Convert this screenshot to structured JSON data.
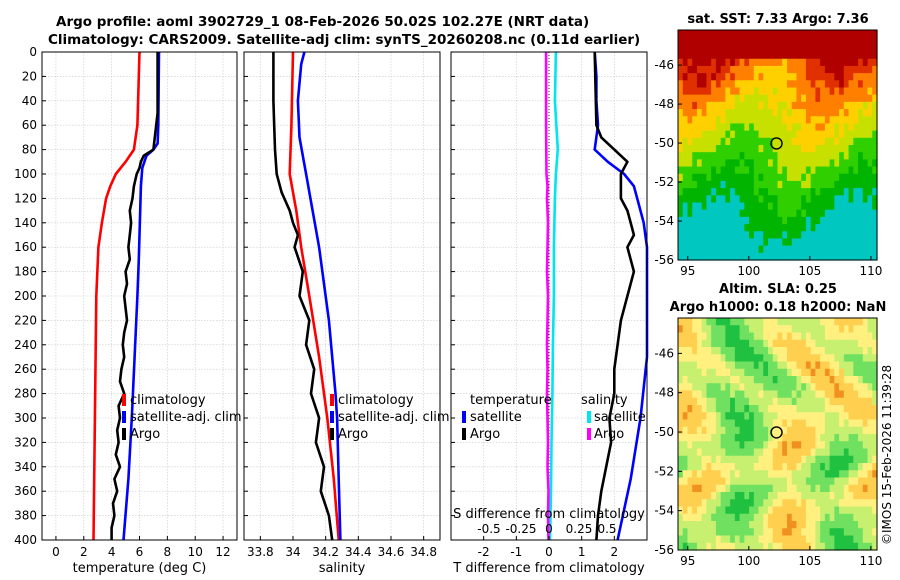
{
  "title_line1": "Argo profile: aoml 3902729_1 08-Feb-2026 50.02S 102.27E (NRT data)",
  "title_line2": "Climatology: CARS2009. Satellite-adj clim: synTS_20260208.nc (0.11d earlier)",
  "credit": "©IMOS 15-Feb-2026 11:39:28",
  "colors": {
    "climatology": "#ff0000",
    "satellite": "#0000ff",
    "argo": "#000000",
    "sal_satellite": "#00e5ee",
    "sal_argo": "#ff00ff"
  },
  "chart_data": [
    {
      "id": "temperature",
      "type": "line",
      "xlabel": "temperature (deg C)",
      "xlim": [
        -1,
        13
      ],
      "xticks": [
        "0",
        "2",
        "4",
        "6",
        "8",
        "10",
        "12"
      ],
      "xtick_values": [
        0,
        2,
        4,
        6,
        8,
        10,
        12
      ],
      "ylim": [
        400,
        0
      ],
      "yticks": [
        "0",
        "20",
        "40",
        "60",
        "80",
        "100",
        "120",
        "140",
        "160",
        "180",
        "200",
        "220",
        "240",
        "260",
        "280",
        "300",
        "320",
        "340",
        "360",
        "380",
        "400"
      ],
      "ytick_values": [
        0,
        20,
        40,
        60,
        80,
        100,
        120,
        140,
        160,
        180,
        200,
        220,
        240,
        260,
        280,
        300,
        320,
        340,
        360,
        380,
        400
      ],
      "legend": [
        "climatology",
        "satellite-adj. clim",
        "Argo"
      ],
      "series": [
        {
          "name": "climatology",
          "color": "#ff0000",
          "depth": [
            0,
            40,
            60,
            80,
            90,
            100,
            110,
            120,
            140,
            160,
            200,
            250,
            300,
            350,
            400
          ],
          "values": [
            6.0,
            5.9,
            5.85,
            5.6,
            5.0,
            4.3,
            3.9,
            3.6,
            3.3,
            3.05,
            2.9,
            2.85,
            2.8,
            2.75,
            2.7
          ]
        },
        {
          "name": "satellite-adj. clim",
          "color": "#0000ff",
          "depth": [
            0,
            60,
            75,
            80,
            85,
            95,
            110,
            130,
            150,
            170,
            200,
            250,
            300,
            350,
            400
          ],
          "values": [
            7.4,
            7.35,
            7.3,
            7.0,
            6.5,
            6.2,
            6.1,
            6.05,
            6.0,
            5.95,
            5.85,
            5.65,
            5.45,
            5.2,
            4.85
          ]
        },
        {
          "name": "Argo",
          "color": "#000000",
          "depth": [
            0,
            50,
            60,
            70,
            80,
            85,
            90,
            95,
            100,
            110,
            120,
            130,
            140,
            150,
            160,
            170,
            180,
            190,
            200,
            210,
            220,
            230,
            240,
            250,
            260,
            270,
            280,
            290,
            300,
            310,
            320,
            330,
            340,
            350,
            360,
            370,
            380,
            390,
            400
          ],
          "values": [
            7.3,
            7.3,
            7.2,
            7.1,
            7.0,
            6.3,
            6.1,
            6.0,
            5.8,
            5.6,
            5.5,
            5.3,
            5.4,
            5.3,
            5.2,
            5.3,
            5.0,
            5.1,
            4.9,
            5.0,
            5.1,
            4.9,
            4.8,
            4.9,
            4.7,
            4.6,
            4.9,
            4.5,
            4.6,
            4.4,
            4.5,
            4.3,
            4.6,
            4.2,
            4.4,
            4.1,
            4.2,
            4.0,
            4.0
          ]
        }
      ]
    },
    {
      "id": "salinity",
      "type": "line",
      "xlabel": "salinity",
      "xlim": [
        33.7,
        34.9
      ],
      "xticks": [
        "33.8",
        "34",
        "34.2",
        "34.4",
        "34.6",
        "34.8"
      ],
      "xtick_values": [
        33.8,
        34.0,
        34.2,
        34.4,
        34.6,
        34.8
      ],
      "ylim": [
        400,
        0
      ],
      "yticks": [
        "0",
        "20",
        "40",
        "60",
        "80",
        "100",
        "120",
        "140",
        "160",
        "180",
        "200",
        "220",
        "240",
        "260",
        "280",
        "300",
        "320",
        "340",
        "360",
        "380",
        "400"
      ],
      "ytick_values": [
        0,
        20,
        40,
        60,
        80,
        100,
        120,
        140,
        160,
        180,
        200,
        220,
        240,
        260,
        280,
        300,
        320,
        340,
        360,
        380,
        400
      ],
      "legend": [
        "climatology",
        "satellite-adj. clim",
        "Argo"
      ],
      "series": [
        {
          "name": "climatology",
          "color": "#ff0000",
          "depth": [
            0,
            60,
            100,
            130,
            160,
            200,
            250,
            300,
            350,
            400
          ],
          "values": [
            34.0,
            33.99,
            33.98,
            34.02,
            34.05,
            34.1,
            34.16,
            34.21,
            34.25,
            34.28
          ]
        },
        {
          "name": "satellite-adj. clim",
          "color": "#0000ff",
          "depth": [
            0,
            10,
            40,
            70,
            100,
            130,
            160,
            190,
            220,
            250,
            280,
            300,
            350,
            400
          ],
          "values": [
            34.07,
            34.05,
            34.03,
            34.04,
            34.08,
            34.12,
            34.16,
            34.19,
            34.22,
            34.24,
            34.26,
            34.27,
            34.28,
            34.29
          ]
        },
        {
          "name": "Argo",
          "color": "#000000",
          "depth": [
            0,
            40,
            80,
            100,
            115,
            130,
            140,
            150,
            160,
            180,
            200,
            220,
            240,
            260,
            280,
            300,
            320,
            340,
            360,
            380,
            400
          ],
          "values": [
            33.88,
            33.88,
            33.89,
            33.9,
            33.93,
            33.98,
            34.0,
            34.03,
            34.01,
            34.06,
            34.04,
            34.1,
            34.08,
            34.13,
            34.11,
            34.16,
            34.14,
            34.19,
            34.17,
            34.22,
            34.24
          ]
        }
      ]
    },
    {
      "id": "differences",
      "type": "line",
      "xlabel": "T difference from climatology",
      "xlim": [
        -3,
        3
      ],
      "xticks": [
        "-2",
        "-1",
        "0",
        "1",
        "2"
      ],
      "xtick_values": [
        -2,
        -1,
        0,
        1,
        2
      ],
      "top_xlabel": "S difference from climatology",
      "top_xticks": [
        "-0.5",
        "-0.25",
        "0",
        "0.25",
        "0.5"
      ],
      "ylim": [
        400,
        0
      ],
      "legend_temperature_title": "temperature",
      "legend_salinity_title": "salinity",
      "legend_temperature": [
        "satellite",
        "Argo"
      ],
      "legend_salinity": [
        "satellite",
        "Argo"
      ],
      "series": [
        {
          "name": "T satellite",
          "color": "#0000ff",
          "depth": [
            0,
            20,
            40,
            60,
            80,
            90,
            100,
            110,
            120,
            140,
            160,
            200,
            250,
            300,
            350,
            400
          ],
          "values": [
            1.4,
            1.45,
            1.45,
            1.5,
            1.4,
            1.8,
            2.3,
            2.6,
            2.7,
            2.9,
            3.0,
            3.0,
            3.0,
            2.8,
            2.5,
            2.1
          ]
        },
        {
          "name": "T Argo",
          "color": "#000000",
          "depth": [
            0,
            60,
            70,
            80,
            90,
            100,
            120,
            130,
            140,
            150,
            160,
            180,
            200,
            220,
            240,
            260,
            280,
            300,
            320,
            340,
            360,
            380,
            400
          ],
          "values": [
            1.4,
            1.45,
            1.6,
            2.0,
            2.4,
            2.2,
            2.2,
            2.4,
            2.5,
            2.6,
            2.4,
            2.6,
            2.4,
            2.2,
            2.1,
            2.0,
            2.0,
            1.85,
            1.9,
            1.75,
            1.6,
            1.5,
            1.45
          ]
        },
        {
          "name": "S satellite",
          "color": "#00e5ee",
          "depth": [
            0,
            40,
            80,
            100,
            120,
            160,
            200,
            240,
            280,
            320,
            360,
            400
          ],
          "values": [
            0.07,
            0.06,
            0.09,
            0.07,
            0.06,
            0.05,
            0.05,
            0.04,
            0.035,
            0.025,
            0.02,
            0.01
          ]
        },
        {
          "name": "S Argo",
          "color": "#ff00ff",
          "depth": [
            0,
            60,
            100,
            110,
            120,
            140,
            160,
            180,
            200,
            220,
            240,
            260,
            280,
            300,
            320,
            340,
            360,
            380,
            400
          ],
          "values": [
            -0.03,
            -0.03,
            -0.025,
            -0.015,
            -0.02,
            -0.01,
            -0.015,
            -0.02,
            -0.01,
            -0.015,
            -0.02,
            -0.015,
            -0.02,
            -0.015,
            -0.01,
            -0.015,
            -0.005,
            -0.01,
            -0.005
          ]
        }
      ]
    },
    {
      "id": "sst_map",
      "type": "heatmap",
      "title": "sat. SST: 7.33 Argo: 7.36",
      "xticks": [
        "95",
        "100",
        "105",
        "110"
      ],
      "xtick_values": [
        95,
        100,
        105,
        110
      ],
      "yticks": [
        "-46",
        "-48",
        "-50",
        "-52",
        "-54",
        "-56"
      ],
      "ytick_values": [
        -46,
        -48,
        -50,
        -52,
        -54,
        -56
      ],
      "xlim": [
        94.2,
        110.5
      ],
      "ylim": [
        -56,
        -44.2
      ],
      "marker": [
        102.27,
        -50.02
      ]
    },
    {
      "id": "sla_map",
      "type": "heatmap",
      "title_line1": "Altim. SLA: 0.25",
      "title_line2": "Argo h1000: 0.18 h2000: NaN",
      "xticks": [
        "95",
        "100",
        "105",
        "110"
      ],
      "xtick_values": [
        95,
        100,
        105,
        110
      ],
      "yticks": [
        "-46",
        "-48",
        "-50",
        "-52",
        "-54",
        "-56"
      ],
      "ytick_values": [
        -46,
        -48,
        -50,
        -52,
        -54,
        -56
      ],
      "xlim": [
        94.2,
        110.5
      ],
      "ylim": [
        -56,
        -44.2
      ],
      "marker": [
        102.27,
        -50.02
      ]
    }
  ]
}
